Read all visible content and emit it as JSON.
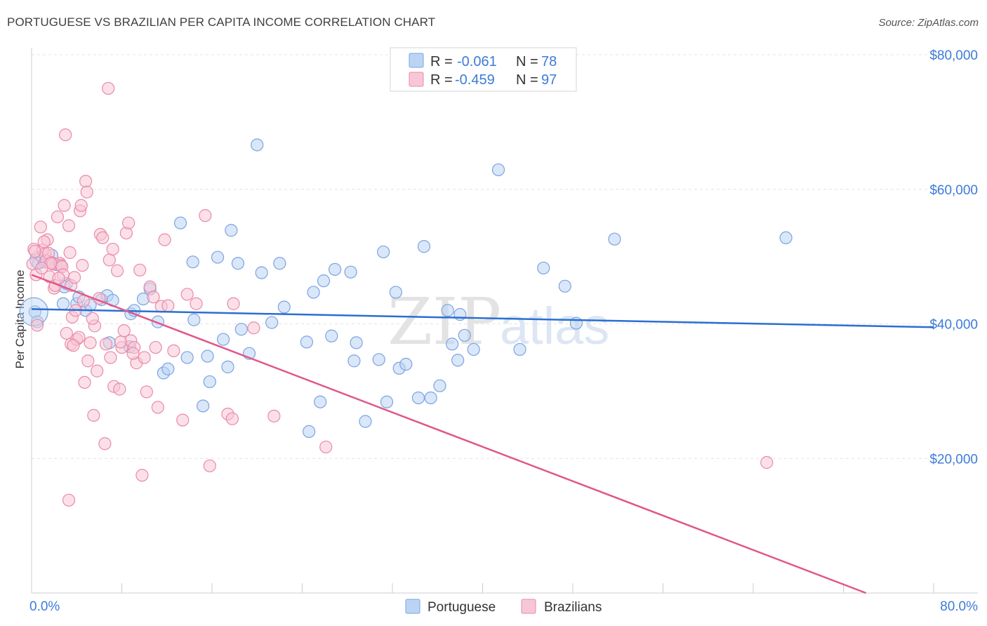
{
  "title": "PORTUGUESE VS BRAZILIAN PER CAPITA INCOME CORRELATION CHART",
  "source": "Source: ZipAtlas.com",
  "watermark": {
    "zip": "ZIP",
    "atlas": "atlas"
  },
  "colors": {
    "portuguese_fill": "#bcd4f4",
    "portuguese_stroke": "#7aa4e0",
    "portuguese_line": "#2a6fd1",
    "brazilian_fill": "#f8c7d6",
    "brazilian_stroke": "#ea8aa9",
    "brazilian_line": "#e0578a",
    "axis_text": "#3d7bd9",
    "grid": "#e4e4e4"
  },
  "legend": {
    "rows": [
      {
        "r_label": "R =",
        "r_value": "-0.061",
        "n_label": "N =",
        "n_value": "78"
      },
      {
        "r_label": "R =",
        "r_value": "-0.459",
        "n_label": "N =",
        "n_value": "97"
      }
    ]
  },
  "chart_data": {
    "type": "scatter",
    "title": "PORTUGUESE VS BRAZILIAN PER CAPITA INCOME CORRELATION CHART",
    "xlabel": "",
    "ylabel": "Per Capita Income",
    "xlim": [
      0,
      80
    ],
    "ylim": [
      0,
      80000
    ],
    "x_tick_labels": [
      "0.0%",
      "80.0%"
    ],
    "y_ticks": [
      20000,
      40000,
      60000,
      80000
    ],
    "y_tick_labels": [
      "$20,000",
      "$40,000",
      "$60,000",
      "$80,000"
    ],
    "grid": true,
    "legend_position": "top-center",
    "series": [
      {
        "name": "Portuguese",
        "trend": {
          "x": [
            0,
            80
          ],
          "y": [
            42200,
            39500
          ]
        },
        "points": [
          [
            0.3,
            41800
          ],
          [
            0.6,
            49000
          ],
          [
            1.2,
            49200
          ],
          [
            1.8,
            50200
          ],
          [
            2.2,
            48800
          ],
          [
            2.9,
            45500
          ],
          [
            3.1,
            46000
          ],
          [
            2.8,
            43000
          ],
          [
            4.0,
            43000
          ],
          [
            4.2,
            44000
          ],
          [
            4.8,
            42000
          ],
          [
            5.2,
            42800
          ],
          [
            6.2,
            43600
          ],
          [
            6.7,
            44200
          ],
          [
            7.2,
            43500
          ],
          [
            6.9,
            37200
          ],
          [
            8.7,
            36600
          ],
          [
            8.8,
            41500
          ],
          [
            9.1,
            42000
          ],
          [
            9.9,
            43700
          ],
          [
            10.5,
            45200
          ],
          [
            11.2,
            40300
          ],
          [
            11.7,
            32700
          ],
          [
            12.1,
            33300
          ],
          [
            13.2,
            55000
          ],
          [
            13.8,
            35000
          ],
          [
            14.3,
            49200
          ],
          [
            14.4,
            40600
          ],
          [
            15.2,
            27800
          ],
          [
            15.6,
            35200
          ],
          [
            15.8,
            31400
          ],
          [
            16.5,
            49900
          ],
          [
            17.0,
            37700
          ],
          [
            17.4,
            33600
          ],
          [
            17.7,
            53900
          ],
          [
            18.3,
            49000
          ],
          [
            18.6,
            39200
          ],
          [
            19.3,
            35600
          ],
          [
            20.0,
            66600
          ],
          [
            20.4,
            47600
          ],
          [
            21.3,
            40200
          ],
          [
            22.0,
            49000
          ],
          [
            22.4,
            42500
          ],
          [
            24.4,
            37300
          ],
          [
            24.6,
            24000
          ],
          [
            25.0,
            44700
          ],
          [
            25.6,
            28400
          ],
          [
            25.9,
            46400
          ],
          [
            26.6,
            38200
          ],
          [
            26.9,
            48100
          ],
          [
            28.3,
            47700
          ],
          [
            28.6,
            34500
          ],
          [
            28.8,
            37200
          ],
          [
            29.6,
            25500
          ],
          [
            30.8,
            34700
          ],
          [
            31.2,
            50700
          ],
          [
            31.5,
            28400
          ],
          [
            32.3,
            44700
          ],
          [
            32.6,
            33400
          ],
          [
            33.2,
            34000
          ],
          [
            34.3,
            29000
          ],
          [
            34.8,
            51500
          ],
          [
            35.4,
            29000
          ],
          [
            36.2,
            30800
          ],
          [
            36.9,
            42000
          ],
          [
            37.3,
            37000
          ],
          [
            37.8,
            34600
          ],
          [
            38.0,
            41400
          ],
          [
            38.4,
            38300
          ],
          [
            39.2,
            36200
          ],
          [
            41.4,
            62900
          ],
          [
            43.3,
            36200
          ],
          [
            45.4,
            48300
          ],
          [
            47.3,
            45600
          ],
          [
            48.3,
            40100
          ],
          [
            51.7,
            52600
          ],
          [
            66.9,
            52800
          ],
          [
            0.5,
            40300
          ]
        ]
      },
      {
        "name": "Brazilians",
        "trend": {
          "x": [
            0,
            74
          ],
          "y": [
            47300,
            0
          ]
        },
        "points": [
          [
            0.1,
            48900
          ],
          [
            0.2,
            51100
          ],
          [
            0.4,
            47300
          ],
          [
            0.5,
            39800
          ],
          [
            0.8,
            54400
          ],
          [
            1.0,
            51000
          ],
          [
            1.2,
            50400
          ],
          [
            1.3,
            49400
          ],
          [
            1.4,
            52500
          ],
          [
            1.5,
            50500
          ],
          [
            1.6,
            47000
          ],
          [
            1.8,
            49100
          ],
          [
            1.9,
            48900
          ],
          [
            2.0,
            45300
          ],
          [
            2.1,
            45700
          ],
          [
            2.3,
            55900
          ],
          [
            2.5,
            49000
          ],
          [
            2.6,
            48700
          ],
          [
            2.7,
            48500
          ],
          [
            2.8,
            47300
          ],
          [
            2.9,
            57600
          ],
          [
            3.1,
            38600
          ],
          [
            3.3,
            54600
          ],
          [
            3.4,
            50600
          ],
          [
            3.5,
            45700
          ],
          [
            3.5,
            37000
          ],
          [
            3.6,
            41000
          ],
          [
            3.8,
            46900
          ],
          [
            3.9,
            42000
          ],
          [
            4.0,
            37700
          ],
          [
            4.2,
            38000
          ],
          [
            4.3,
            56800
          ],
          [
            4.4,
            57600
          ],
          [
            4.5,
            48700
          ],
          [
            4.6,
            43400
          ],
          [
            4.7,
            31300
          ],
          [
            4.8,
            61200
          ],
          [
            4.9,
            59600
          ],
          [
            5.0,
            34500
          ],
          [
            5.2,
            37200
          ],
          [
            5.5,
            26400
          ],
          [
            5.6,
            39700
          ],
          [
            5.8,
            33000
          ],
          [
            6.1,
            53300
          ],
          [
            6.3,
            52800
          ],
          [
            6.5,
            22200
          ],
          [
            6.6,
            37000
          ],
          [
            6.8,
            75000
          ],
          [
            6.9,
            49500
          ],
          [
            7.0,
            35000
          ],
          [
            7.2,
            51100
          ],
          [
            7.3,
            30700
          ],
          [
            7.6,
            47900
          ],
          [
            7.8,
            30300
          ],
          [
            8.0,
            36500
          ],
          [
            8.2,
            39000
          ],
          [
            8.4,
            53500
          ],
          [
            8.6,
            55000
          ],
          [
            8.8,
            37500
          ],
          [
            9.1,
            36500
          ],
          [
            9.3,
            34200
          ],
          [
            9.6,
            48000
          ],
          [
            9.8,
            17500
          ],
          [
            10.0,
            35000
          ],
          [
            10.2,
            29900
          ],
          [
            10.5,
            45500
          ],
          [
            10.8,
            44000
          ],
          [
            11.2,
            27600
          ],
          [
            11.5,
            42600
          ],
          [
            11.8,
            52500
          ],
          [
            12.1,
            42700
          ],
          [
            12.6,
            36000
          ],
          [
            13.4,
            25700
          ],
          [
            13.8,
            44400
          ],
          [
            14.6,
            43000
          ],
          [
            15.4,
            56100
          ],
          [
            15.8,
            18900
          ],
          [
            17.4,
            26600
          ],
          [
            17.8,
            25900
          ],
          [
            17.9,
            43000
          ],
          [
            19.7,
            39400
          ],
          [
            21.5,
            26300
          ],
          [
            26.1,
            21700
          ],
          [
            65.2,
            19400
          ],
          [
            1.1,
            52200
          ],
          [
            1.7,
            49000
          ],
          [
            2.4,
            46800
          ],
          [
            3.0,
            68100
          ],
          [
            3.7,
            36800
          ],
          [
            5.4,
            40800
          ],
          [
            6.0,
            43800
          ],
          [
            7.9,
            37300
          ],
          [
            9.0,
            35600
          ],
          [
            11.0,
            36500
          ],
          [
            0.3,
            50800
          ],
          [
            0.9,
            48300
          ],
          [
            3.3,
            13800
          ]
        ]
      }
    ]
  },
  "bottom_legend": [
    "Portuguese",
    "Brazilians"
  ]
}
